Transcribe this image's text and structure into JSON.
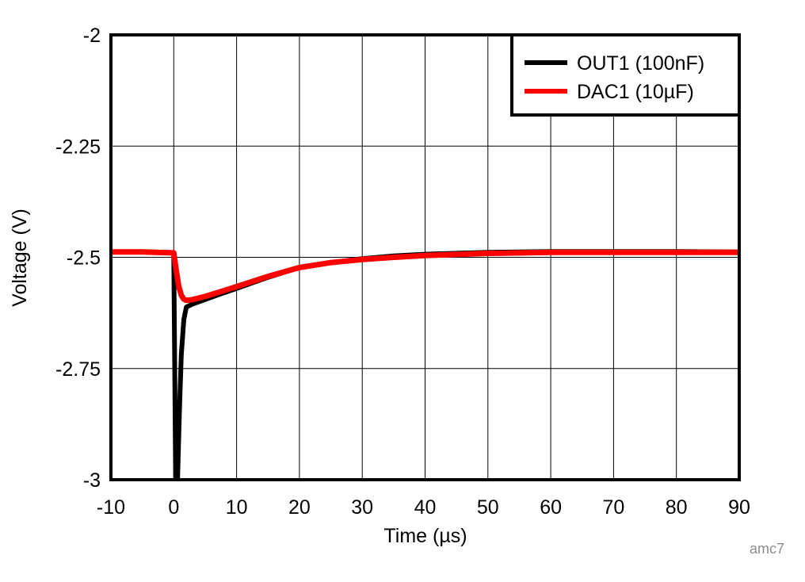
{
  "chart_data": {
    "type": "line",
    "title": "",
    "xlabel": "Time (µs)",
    "ylabel": "Voltage (V)",
    "xlim": [
      -10,
      90
    ],
    "ylim": [
      -3,
      -2
    ],
    "xticks": [
      -10,
      0,
      10,
      20,
      30,
      40,
      50,
      60,
      70,
      80,
      90
    ],
    "yticks": [
      -2,
      -2.25,
      -2.5,
      -2.75,
      -3
    ],
    "ytick_labels": [
      "-2",
      "-2.25",
      "-2.5",
      "-2.75",
      "-3"
    ],
    "xtick_labels": [
      "-10",
      "0",
      "10",
      "20",
      "30",
      "40",
      "50",
      "60",
      "70",
      "80",
      "90"
    ],
    "grid": true,
    "legend_position": "upper right",
    "series": [
      {
        "name": "OUT1 (100nF)",
        "color": "#000000",
        "x": [
          -10,
          -5,
          0,
          0.3,
          0.6,
          0.9,
          1.2,
          1.6,
          2.0,
          3,
          5,
          7.5,
          10,
          15,
          20,
          25,
          30,
          35,
          40,
          50,
          60,
          70,
          80,
          90
        ],
        "y": [
          -2.488,
          -2.488,
          -2.49,
          -3.0,
          -3.0,
          -2.85,
          -2.72,
          -2.64,
          -2.612,
          -2.605,
          -2.595,
          -2.582,
          -2.57,
          -2.545,
          -2.523,
          -2.512,
          -2.503,
          -2.497,
          -2.493,
          -2.489,
          -2.487,
          -2.487,
          -2.487,
          -2.488
        ]
      },
      {
        "name": "DAC1 (10µF)",
        "color": "#ff0000",
        "x": [
          -10,
          -5,
          0,
          0.4,
          0.8,
          1.2,
          1.6,
          2.0,
          3,
          5,
          7.5,
          10,
          15,
          20,
          25,
          30,
          35,
          40,
          50,
          60,
          70,
          80,
          90
        ],
        "y": [
          -2.488,
          -2.488,
          -2.49,
          -2.53,
          -2.565,
          -2.585,
          -2.594,
          -2.597,
          -2.595,
          -2.588,
          -2.577,
          -2.566,
          -2.543,
          -2.523,
          -2.512,
          -2.505,
          -2.5,
          -2.496,
          -2.491,
          -2.489,
          -2.489,
          -2.489,
          -2.489
        ]
      }
    ],
    "annotations": [
      "amc7"
    ]
  },
  "legend": {
    "items": [
      {
        "label": "OUT1 (100nF)",
        "color": "#000000"
      },
      {
        "label": "DAC1 (10µF)",
        "color": "#ff0000"
      }
    ]
  },
  "watermark": "amc7"
}
